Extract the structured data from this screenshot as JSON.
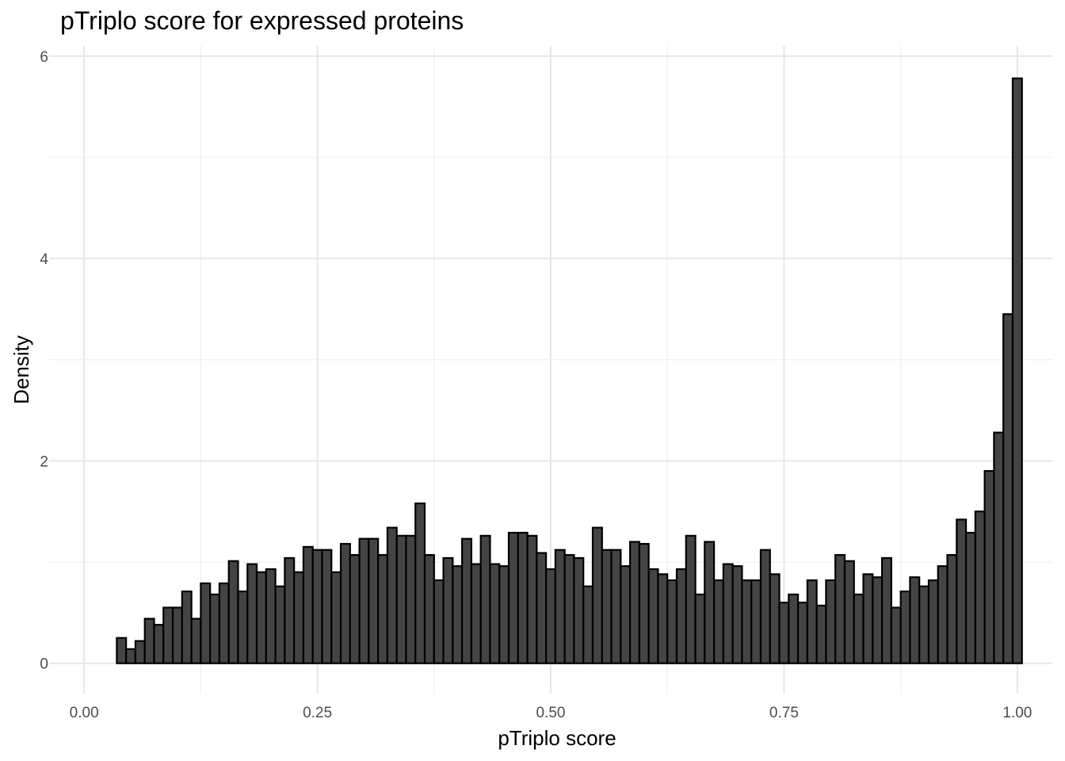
{
  "chart_data": {
    "type": "histogram",
    "title": "pTriplo score for expressed proteins",
    "xlabel": "pTriplo score",
    "ylabel": "Density",
    "xlim": [
      -0.0375,
      1.0375
    ],
    "ylim": [
      -0.3,
      6.1
    ],
    "x_ticks": [
      0.0,
      0.25,
      0.5,
      0.75,
      1.0
    ],
    "x_tick_labels": [
      "0.00",
      "0.25",
      "0.50",
      "0.75",
      "1.00"
    ],
    "y_ticks": [
      0,
      2,
      4,
      6
    ],
    "y_tick_labels": [
      "0",
      "2",
      "4",
      "6"
    ],
    "bin_width": 0.01,
    "bin_start": 0.035,
    "bar_fill": "#444444",
    "bar_stroke": "#000000",
    "grid": true,
    "values": [
      0.25,
      0.14,
      0.22,
      0.44,
      0.38,
      0.55,
      0.55,
      0.71,
      0.44,
      0.79,
      0.68,
      0.79,
      1.01,
      0.71,
      0.98,
      0.9,
      0.93,
      0.76,
      1.04,
      0.9,
      1.15,
      1.12,
      1.12,
      0.9,
      1.18,
      1.07,
      1.23,
      1.23,
      1.07,
      1.34,
      1.26,
      1.26,
      1.58,
      1.07,
      0.82,
      1.04,
      0.96,
      1.23,
      0.98,
      1.26,
      0.98,
      0.96,
      1.29,
      1.29,
      1.26,
      1.09,
      0.93,
      1.12,
      1.07,
      1.04,
      0.76,
      1.34,
      1.12,
      1.12,
      0.96,
      1.2,
      1.18,
      0.93,
      0.88,
      0.82,
      0.93,
      1.26,
      0.68,
      1.2,
      0.82,
      0.98,
      0.96,
      0.82,
      0.82,
      1.12,
      0.88,
      0.6,
      0.68,
      0.6,
      0.82,
      0.57,
      0.82,
      1.07,
      1.01,
      0.68,
      0.88,
      0.85,
      1.04,
      0.55,
      0.71,
      0.85,
      0.76,
      0.82,
      0.96,
      1.07,
      1.42,
      1.29,
      1.5,
      1.9,
      2.28,
      3.45,
      5.78
    ]
  }
}
